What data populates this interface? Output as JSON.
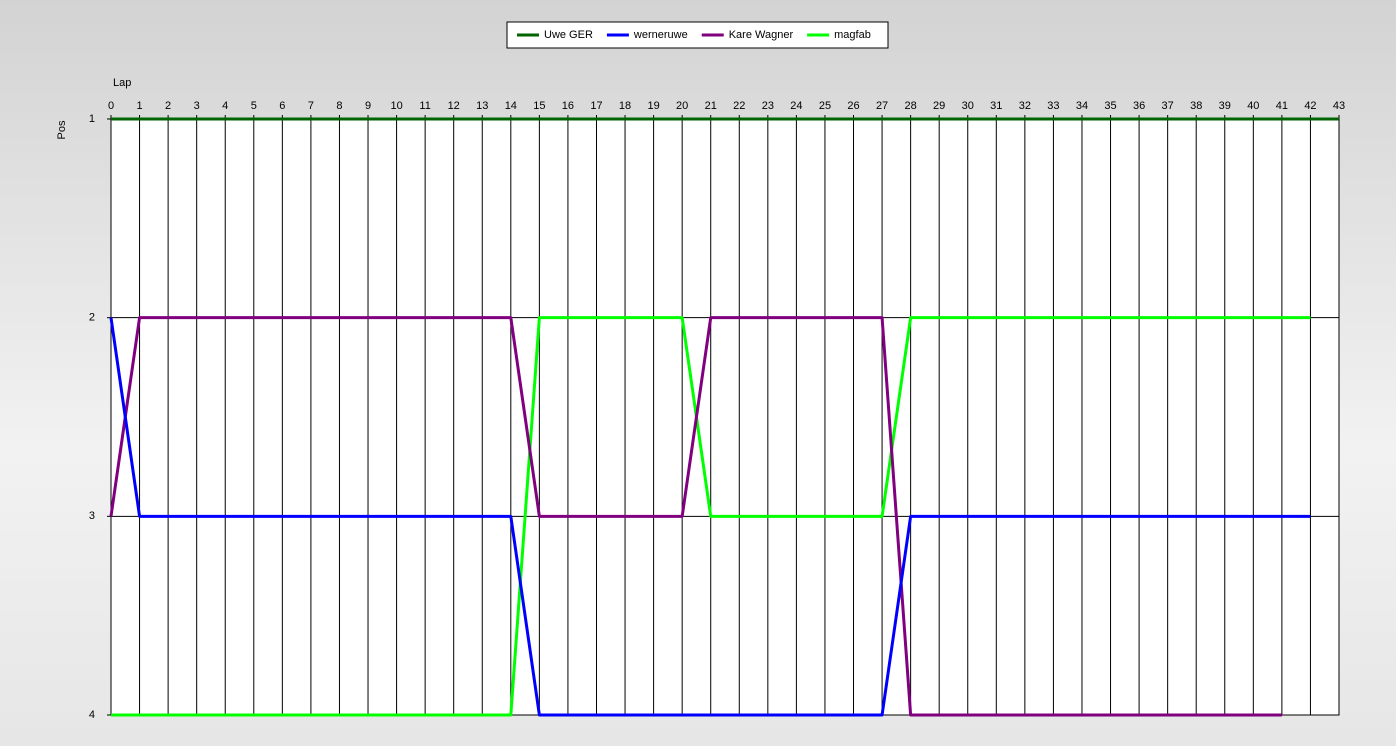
{
  "chart_data": {
    "type": "line",
    "xlabel": "Lap",
    "ylabel": "Pos",
    "x": [
      0,
      1,
      2,
      3,
      4,
      5,
      6,
      7,
      8,
      9,
      10,
      11,
      12,
      13,
      14,
      15,
      16,
      17,
      18,
      19,
      20,
      21,
      22,
      23,
      24,
      25,
      26,
      27,
      28,
      29,
      30,
      31,
      32,
      33,
      34,
      35,
      36,
      37,
      38,
      39,
      40,
      41,
      42,
      43
    ],
    "xlim": [
      0,
      43
    ],
    "xticks": [
      0,
      1,
      2,
      3,
      4,
      5,
      6,
      7,
      8,
      9,
      10,
      11,
      12,
      13,
      14,
      15,
      16,
      17,
      18,
      19,
      20,
      21,
      22,
      23,
      24,
      25,
      26,
      27,
      28,
      29,
      30,
      31,
      32,
      33,
      34,
      35,
      36,
      37,
      38,
      39,
      40,
      41,
      42,
      43
    ],
    "ylim": [
      4,
      1
    ],
    "yticks": [
      1,
      2,
      3,
      4
    ],
    "grid": true,
    "legend": "top",
    "series": [
      {
        "name": "Uwe GER",
        "color": "#006400",
        "values": [
          1,
          1,
          1,
          1,
          1,
          1,
          1,
          1,
          1,
          1,
          1,
          1,
          1,
          1,
          1,
          1,
          1,
          1,
          1,
          1,
          1,
          1,
          1,
          1,
          1,
          1,
          1,
          1,
          1,
          1,
          1,
          1,
          1,
          1,
          1,
          1,
          1,
          1,
          1,
          1,
          1,
          1,
          1,
          1
        ]
      },
      {
        "name": "werneruwe",
        "color": "#0000ff",
        "values": [
          2,
          3,
          3,
          3,
          3,
          3,
          3,
          3,
          3,
          3,
          3,
          3,
          3,
          3,
          3,
          4,
          4,
          4,
          4,
          4,
          4,
          4,
          4,
          4,
          4,
          4,
          4,
          4,
          3,
          3,
          3,
          3,
          3,
          3,
          3,
          3,
          3,
          3,
          3,
          3,
          3,
          3,
          3,
          null
        ]
      },
      {
        "name": "Kare Wagner",
        "color": "#800080",
        "values": [
          3,
          2,
          2,
          2,
          2,
          2,
          2,
          2,
          2,
          2,
          2,
          2,
          2,
          2,
          2,
          3,
          3,
          3,
          3,
          3,
          3,
          2,
          2,
          2,
          2,
          2,
          2,
          2,
          4,
          4,
          4,
          4,
          4,
          4,
          4,
          4,
          4,
          4,
          4,
          4,
          4,
          4,
          null,
          null
        ]
      },
      {
        "name": "magfab",
        "color": "#00ff00",
        "values": [
          4,
          4,
          4,
          4,
          4,
          4,
          4,
          4,
          4,
          4,
          4,
          4,
          4,
          4,
          4,
          2,
          2,
          2,
          2,
          2,
          2,
          3,
          3,
          3,
          3,
          3,
          3,
          3,
          2,
          2,
          2,
          2,
          2,
          2,
          2,
          2,
          2,
          2,
          2,
          2,
          2,
          2,
          2,
          null
        ]
      }
    ]
  }
}
